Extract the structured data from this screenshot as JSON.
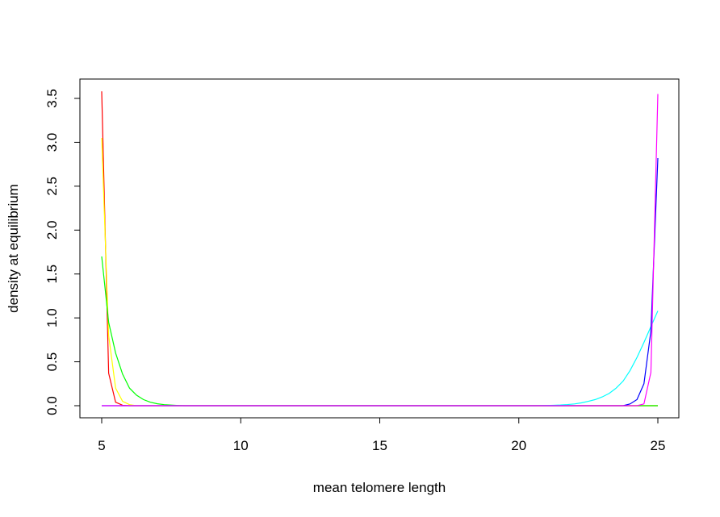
{
  "chart_data": {
    "type": "line",
    "title": "",
    "xlabel": "mean telomere length",
    "ylabel": "density at equilibrium",
    "xlim": [
      5,
      25
    ],
    "ylim": [
      0,
      3.5
    ],
    "x_ticks": [
      5,
      10,
      15,
      20,
      25
    ],
    "x_tick_labels": [
      "5",
      "10",
      "15",
      "20",
      "25"
    ],
    "y_ticks": [
      0,
      0.5,
      1,
      1.5,
      2,
      2.5,
      3,
      3.5
    ],
    "y_tick_labels": [
      "0.0",
      "0.5",
      "1.0",
      "1.5",
      "2.0",
      "2.5",
      "3.0",
      "3.5"
    ],
    "grid": false,
    "legend": "none",
    "series": [
      {
        "color": "#FF0000",
        "points": [
          [
            5.0,
            3.58
          ],
          [
            5.25,
            0.37
          ],
          [
            5.5,
            0.04
          ],
          [
            5.75,
            0.005
          ],
          [
            6.0,
            0.0
          ],
          [
            25.0,
            0.0
          ]
        ]
      },
      {
        "color": "#FFFF00",
        "points": [
          [
            5.0,
            3.05
          ],
          [
            5.25,
            0.8
          ],
          [
            5.5,
            0.2
          ],
          [
            5.75,
            0.05
          ],
          [
            6.0,
            0.012
          ],
          [
            6.25,
            0.0
          ],
          [
            25.0,
            0.0
          ]
        ]
      },
      {
        "color": "#00FF00",
        "points": [
          [
            5.0,
            1.7
          ],
          [
            5.25,
            0.95
          ],
          [
            5.5,
            0.6
          ],
          [
            5.75,
            0.36
          ],
          [
            6.0,
            0.2
          ],
          [
            6.25,
            0.12
          ],
          [
            6.5,
            0.07
          ],
          [
            6.75,
            0.04
          ],
          [
            7.0,
            0.022
          ],
          [
            7.25,
            0.012
          ],
          [
            7.5,
            0.007
          ],
          [
            7.75,
            0.003
          ],
          [
            8.0,
            0.0
          ],
          [
            25.0,
            0.0
          ]
        ]
      },
      {
        "color": "#00FFFF",
        "points": [
          [
            5.0,
            0.0
          ],
          [
            20.5,
            0.0
          ],
          [
            21.0,
            0.003
          ],
          [
            21.25,
            0.005
          ],
          [
            21.5,
            0.008
          ],
          [
            21.75,
            0.013
          ],
          [
            22.0,
            0.02
          ],
          [
            22.25,
            0.032
          ],
          [
            22.5,
            0.05
          ],
          [
            22.75,
            0.07
          ],
          [
            23.0,
            0.1
          ],
          [
            23.25,
            0.14
          ],
          [
            23.5,
            0.2
          ],
          [
            23.75,
            0.28
          ],
          [
            24.0,
            0.4
          ],
          [
            24.25,
            0.55
          ],
          [
            24.5,
            0.72
          ],
          [
            24.75,
            0.9
          ],
          [
            25.0,
            1.08
          ]
        ]
      },
      {
        "color": "#0000FF",
        "points": [
          [
            5.0,
            0.0
          ],
          [
            23.75,
            0.0
          ],
          [
            24.0,
            0.02
          ],
          [
            24.25,
            0.07
          ],
          [
            24.5,
            0.25
          ],
          [
            24.75,
            0.85
          ],
          [
            25.0,
            2.82
          ]
        ]
      },
      {
        "color": "#FF00FF",
        "points": [
          [
            5.0,
            0.0
          ],
          [
            24.25,
            0.0
          ],
          [
            24.5,
            0.02
          ],
          [
            24.75,
            0.38
          ],
          [
            25.0,
            3.55
          ]
        ]
      }
    ]
  }
}
